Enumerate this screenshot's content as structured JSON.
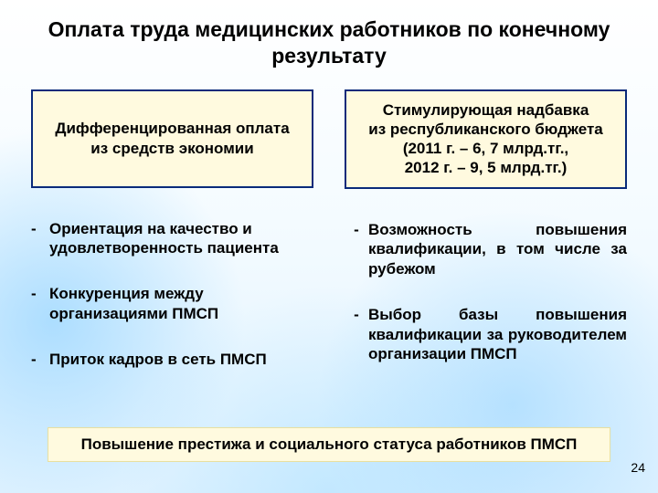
{
  "title": "Оплата труда медицинских работников по конечному результату",
  "left": {
    "box": "Дифференцированная оплата\nиз средств экономии",
    "items": [
      "Ориентация на качество и удовлетворенность пациента",
      "Конкуренция между организациями ПМСП",
      "Приток кадров в сеть ПМСП"
    ]
  },
  "right": {
    "box": "Стимулирующая надбавка\nиз республиканского бюджета\n(2011 г. – 6, 7 млрд.тг.,\n2012 г. – 9, 5 млрд.тг.)",
    "items": [
      "Возможность повышения квалификации, в том числе за рубежом",
      "Выбор базы повышения квалификации за руководителем организации ПМСП"
    ]
  },
  "footer": "Повышение престижа и социального статуса работников ПМСП",
  "page": "24",
  "colors": {
    "box_bg": "#fffadf",
    "box_border": "#0a2a7a",
    "text": "#000000"
  }
}
